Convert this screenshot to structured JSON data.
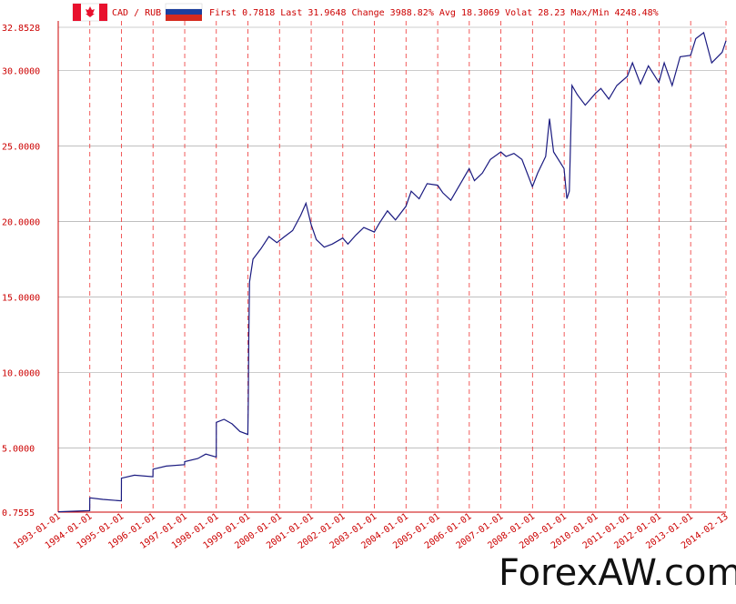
{
  "header": {
    "pair": "CAD / RUB",
    "stats": "First 0.7818 Last 31.9648 Change 3988.82% Avg 18.3069 Volat 28.23 Max/Min 4248.48%"
  },
  "watermark": "ForexAW.com",
  "colors": {
    "line": "#1a1a80",
    "grid": "#999999",
    "vgrid": "#ee3333",
    "text": "#cc0000",
    "flag_red": "#e8112d",
    "ru_blue": "#1c3f9e"
  },
  "chart_data": {
    "type": "line",
    "ylim": [
      0.7555,
      32.8528
    ],
    "yticks": [
      "0.7555",
      "5.0000",
      "10.0000",
      "15.0000",
      "20.0000",
      "25.0000",
      "30.0000",
      "32.8528"
    ],
    "ytick_values": [
      0.7555,
      5,
      10,
      15,
      20,
      25,
      30,
      32.8528
    ],
    "xlim": [
      "1993-01-01",
      "2014-02-13"
    ],
    "xticks": [
      "1993-01-01",
      "1994-01-01",
      "1995-01-01",
      "1996-01-01",
      "1997-01-01",
      "1998-01-01",
      "1999-01-01",
      "2000-01-01",
      "2001-01-01",
      "2002-01-01",
      "2003-01-01",
      "2004-01-01",
      "2005-01-01",
      "2006-01-01",
      "2007-01-01",
      "2008-01-01",
      "2009-01-01",
      "2010-01-01",
      "2011-01-01",
      "2012-01-01",
      "2013-01-01",
      "2014-02-13"
    ],
    "points": [
      [
        "1993-01-01",
        0.78
      ],
      [
        "1993-12-31",
        0.85
      ],
      [
        "1994-01-01",
        1.7
      ],
      [
        "1994-06-01",
        1.6
      ],
      [
        "1994-12-31",
        1.5
      ],
      [
        "1995-01-01",
        3.0
      ],
      [
        "1995-06-01",
        3.2
      ],
      [
        "1995-12-31",
        3.1
      ],
      [
        "1996-01-01",
        3.6
      ],
      [
        "1996-06-01",
        3.8
      ],
      [
        "1996-12-31",
        3.9
      ],
      [
        "1997-01-01",
        4.1
      ],
      [
        "1997-06-01",
        4.3
      ],
      [
        "1997-09-01",
        4.6
      ],
      [
        "1997-12-31",
        4.4
      ],
      [
        "1998-01-01",
        6.7
      ],
      [
        "1998-04-01",
        6.9
      ],
      [
        "1998-07-01",
        6.6
      ],
      [
        "1998-10-01",
        6.1
      ],
      [
        "1998-12-31",
        5.9
      ],
      [
        "1999-01-05",
        8.0
      ],
      [
        "1999-01-10",
        12.0
      ],
      [
        "1999-01-20",
        16.0
      ],
      [
        "1999-03-01",
        17.5
      ],
      [
        "1999-06-01",
        18.2
      ],
      [
        "1999-09-01",
        19.0
      ],
      [
        "1999-12-01",
        18.6
      ],
      [
        "2000-03-01",
        19.0
      ],
      [
        "2000-06-01",
        19.4
      ],
      [
        "2000-09-01",
        20.4
      ],
      [
        "2000-11-01",
        21.2
      ],
      [
        "2000-12-31",
        19.8
      ],
      [
        "2001-03-01",
        18.8
      ],
      [
        "2001-06-01",
        18.3
      ],
      [
        "2001-09-01",
        18.5
      ],
      [
        "2001-12-31",
        18.9
      ],
      [
        "2002-03-01",
        18.5
      ],
      [
        "2002-06-01",
        19.1
      ],
      [
        "2002-09-01",
        19.6
      ],
      [
        "2002-12-31",
        19.3
      ],
      [
        "2003-03-01",
        19.9
      ],
      [
        "2003-06-01",
        20.7
      ],
      [
        "2003-09-01",
        20.1
      ],
      [
        "2003-12-31",
        21.0
      ],
      [
        "2004-03-01",
        22.0
      ],
      [
        "2004-06-01",
        21.5
      ],
      [
        "2004-09-01",
        22.5
      ],
      [
        "2004-12-31",
        22.4
      ],
      [
        "2005-03-01",
        21.9
      ],
      [
        "2005-06-01",
        21.4
      ],
      [
        "2005-09-01",
        22.3
      ],
      [
        "2005-12-31",
        23.5
      ],
      [
        "2006-03-01",
        22.7
      ],
      [
        "2006-06-01",
        23.2
      ],
      [
        "2006-09-01",
        24.1
      ],
      [
        "2006-12-31",
        24.6
      ],
      [
        "2007-03-01",
        24.3
      ],
      [
        "2007-06-01",
        24.5
      ],
      [
        "2007-09-01",
        24.1
      ],
      [
        "2007-12-31",
        22.3
      ],
      [
        "2008-03-01",
        23.2
      ],
      [
        "2008-06-01",
        24.3
      ],
      [
        "2008-07-15",
        26.8
      ],
      [
        "2008-09-01",
        24.6
      ],
      [
        "2008-12-31",
        23.5
      ],
      [
        "2009-02-01",
        21.5
      ],
      [
        "2009-03-01",
        22.0
      ],
      [
        "2009-04-01",
        29.0
      ],
      [
        "2009-06-01",
        28.4
      ],
      [
        "2009-09-01",
        27.7
      ],
      [
        "2009-12-31",
        28.5
      ],
      [
        "2010-03-01",
        28.8
      ],
      [
        "2010-06-01",
        28.1
      ],
      [
        "2010-09-01",
        29.0
      ],
      [
        "2010-12-31",
        29.6
      ],
      [
        "2011-03-01",
        30.5
      ],
      [
        "2011-06-01",
        29.1
      ],
      [
        "2011-09-01",
        30.3
      ],
      [
        "2011-12-31",
        29.2
      ],
      [
        "2012-03-01",
        30.5
      ],
      [
        "2012-06-01",
        29.0
      ],
      [
        "2012-09-01",
        30.9
      ],
      [
        "2012-12-31",
        31.0
      ],
      [
        "2013-03-01",
        32.1
      ],
      [
        "2013-06-01",
        32.5
      ],
      [
        "2013-09-01",
        30.5
      ],
      [
        "2013-12-31",
        31.2
      ],
      [
        "2014-02-13",
        31.96
      ]
    ]
  }
}
